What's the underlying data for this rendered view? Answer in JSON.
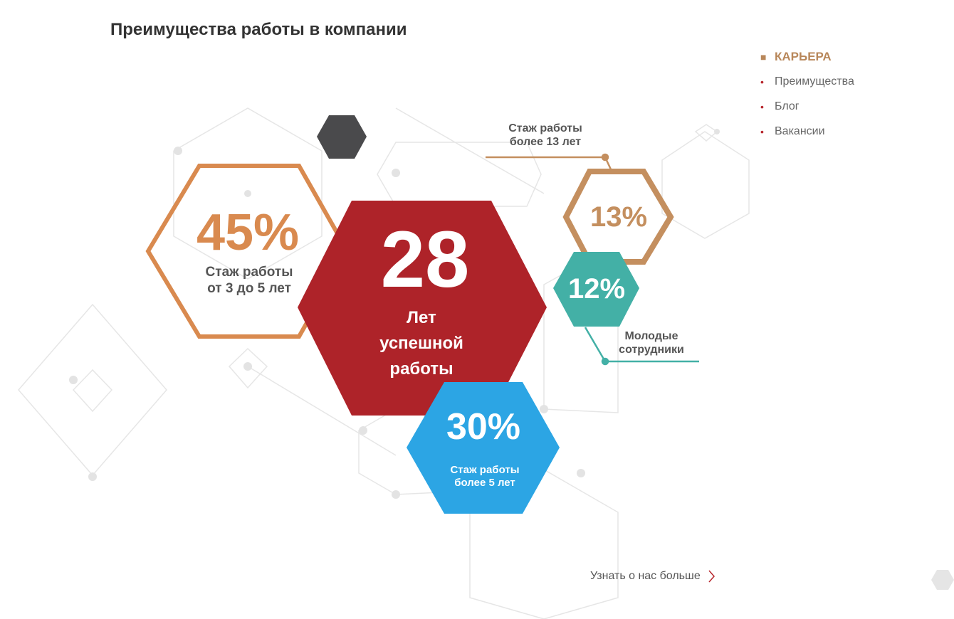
{
  "title": "Преимущества работы в компании",
  "nav": [
    {
      "label": "КАРЬЕРА",
      "active": true
    },
    {
      "label": "Преимущества"
    },
    {
      "label": "Блог"
    },
    {
      "label": "Вакансии"
    }
  ],
  "stats": {
    "years": {
      "value": "28",
      "label1": "Лет",
      "label2": "успешной",
      "label3": "работы"
    },
    "p45": {
      "value": "45%",
      "label1": "Стаж работы",
      "label2": "от 3 до 5 лет"
    },
    "p13": {
      "value": "13%",
      "label1": "Стаж работы",
      "label2": "более 13 лет"
    },
    "p12": {
      "value": "12%",
      "label1": "Молодые",
      "label2": "сотрудники"
    },
    "p30": {
      "value": "30%",
      "label1": "Стаж работы",
      "label2": "более 5 лет"
    }
  },
  "more_link": "Узнать о нас больше",
  "colors": {
    "red": "#ae2329",
    "orange": "#d98a4f",
    "tan": "#c48f5f",
    "teal": "#43b0a6",
    "blue": "#2ca5e4",
    "dark": "#4a4a4c"
  }
}
